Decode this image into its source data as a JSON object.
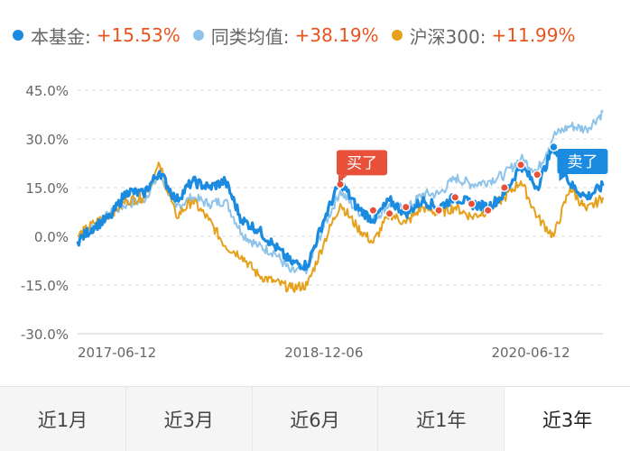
{
  "colors": {
    "fund": "#1a8be0",
    "category": "#8fc3ea",
    "hs300": "#e6a11c",
    "value_text": "#e8541e",
    "buy": "#e8503a",
    "sell": "#1a8be0",
    "grid": "#dcdcdc",
    "axis_text": "#666666"
  },
  "legend": [
    {
      "name": "本基金:",
      "value": "+15.53%",
      "color": "#1a8be0"
    },
    {
      "name": "同类均值:",
      "value": "+38.19%",
      "color": "#8fc3ea"
    },
    {
      "name": "沪深300:",
      "value": "+11.99%",
      "color": "#e6a11c"
    }
  ],
  "tabs": [
    {
      "label": "近1月",
      "active": false
    },
    {
      "label": "近3月",
      "active": false
    },
    {
      "label": "近6月",
      "active": false
    },
    {
      "label": "近1年",
      "active": false
    },
    {
      "label": "近3年",
      "active": true
    }
  ],
  "chart_data": {
    "type": "line",
    "title": "",
    "xlabel": "",
    "ylabel": "",
    "ylim": [
      -30,
      45
    ],
    "y_ticks": [
      "45.0%",
      "30.0%",
      "15.0%",
      "0.0%",
      "-15.0%",
      "-30.0%"
    ],
    "y_tick_values": [
      45,
      30,
      15,
      0,
      -15,
      -30
    ],
    "x_tick_labels": [
      "2017-06-12",
      "2018-12-06",
      "2020-06-12"
    ],
    "x_tick_index": [
      0,
      15,
      30
    ],
    "grid": true,
    "legend_position": "top",
    "x": [
      "2017-06",
      "2017-08",
      "2017-10",
      "2017-12",
      "2018-01",
      "2018-03",
      "2018-04",
      "2018-06",
      "2018-07",
      "2018-08",
      "2018-09",
      "2018-10",
      "2018-11",
      "2018-12",
      "2018-12",
      "2019-01",
      "2019-02",
      "2019-03",
      "2019-04",
      "2019-05",
      "2019-06",
      "2019-07",
      "2019-08",
      "2019-09",
      "2019-10",
      "2019-11",
      "2019-12",
      "2020-01",
      "2020-02",
      "2020-03",
      "2020-06",
      "2020-07",
      "2020-08"
    ],
    "series": [
      {
        "name": "本基金",
        "color": "#1a8be0",
        "values": [
          -1.5,
          3,
          6,
          14,
          13,
          20,
          11,
          17,
          15,
          17,
          5,
          2,
          -3,
          -8,
          -9,
          5,
          17,
          9,
          5,
          11,
          7,
          11,
          9,
          12,
          10,
          9,
          13,
          22,
          15,
          28,
          16,
          12,
          15.53
        ]
      },
      {
        "name": "同类均值",
        "color": "#8fc3ea",
        "values": [
          0,
          3,
          7,
          10,
          11,
          19,
          9,
          12,
          10,
          11,
          1,
          -3,
          -5,
          -11,
          -10,
          3,
          14,
          8,
          5,
          10,
          8,
          13,
          13,
          18,
          16,
          17,
          19,
          24,
          20,
          31,
          34,
          33,
          38.19
        ]
      },
      {
        "name": "沪深300",
        "color": "#e6a11c",
        "values": [
          0,
          4,
          7,
          11,
          12,
          22,
          6,
          11,
          5,
          -3,
          -6,
          -12,
          -14,
          -16,
          -15,
          -2,
          10,
          3,
          -2,
          7,
          4,
          9,
          7,
          9,
          6,
          8,
          12,
          17,
          6,
          0,
          15,
          8,
          11.99
        ]
      }
    ],
    "annotations": [
      {
        "text": "买了",
        "type": "buy"
      },
      {
        "text": "卖了",
        "type": "sell"
      }
    ],
    "buy_points": [
      {
        "x": "2019-02",
        "y": 16
      },
      {
        "x": "2019-04",
        "y": 8
      },
      {
        "x": "2019-05",
        "y": 7
      },
      {
        "x": "2019-06",
        "y": 9
      },
      {
        "x": "2019-08",
        "y": 8
      },
      {
        "x": "2019-09",
        "y": 12
      },
      {
        "x": "2019-10",
        "y": 10
      },
      {
        "x": "2019-11",
        "y": 8
      },
      {
        "x": "2019-12",
        "y": 15
      },
      {
        "x": "2020-01",
        "y": 22
      },
      {
        "x": "2020-02",
        "y": 19
      }
    ],
    "sell_points": [
      {
        "x": "2020-03",
        "y": 27.5
      }
    ]
  }
}
